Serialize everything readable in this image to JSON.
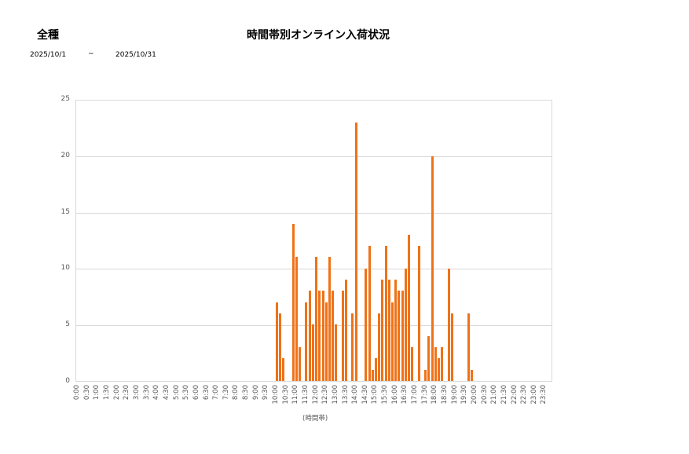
{
  "header": {
    "category": "全種",
    "title": "時間帯別オンライン入荷状況",
    "date_from": "2025/10/1",
    "tilde": "~",
    "date_to": "2025/10/31"
  },
  "colors": {
    "bar": "#f07218",
    "grid": "#d9d9d9",
    "axis_text": "#595959"
  },
  "chart_data": {
    "type": "bar",
    "title": "時間帯別オンライン入荷状況",
    "subtitle": "全種 2025/10/1 ~ 2025/10/31",
    "xlabel": "(時間帯)",
    "ylabel": "",
    "ylim": [
      0,
      25
    ],
    "yticks": [
      0,
      5,
      10,
      15,
      20,
      25
    ],
    "grid": true,
    "legend": "none",
    "interval_minutes": 10,
    "xtick_labels": [
      "0:00",
      "0:30",
      "1:00",
      "1:30",
      "2:00",
      "2:30",
      "3:00",
      "3:30",
      "4:00",
      "4:30",
      "5:00",
      "5:30",
      "6:00",
      "6:30",
      "7:00",
      "7:30",
      "8:00",
      "8:30",
      "9:00",
      "9:30",
      "10:00",
      "10:30",
      "11:00",
      "11:30",
      "12:00",
      "12:30",
      "13:00",
      "13:30",
      "14:00",
      "14:30",
      "15:00",
      "15:30",
      "16:00",
      "16:30",
      "17:00",
      "17:30",
      "18:00",
      "18:30",
      "19:00",
      "19:30",
      "20:00",
      "20:30",
      "21:00",
      "21:30",
      "22:00",
      "22:30",
      "23:00",
      "23:30"
    ],
    "categories": [
      "0:00",
      "0:10",
      "0:20",
      "0:30",
      "0:40",
      "0:50",
      "1:00",
      "1:10",
      "1:20",
      "1:30",
      "1:40",
      "1:50",
      "2:00",
      "2:10",
      "2:20",
      "2:30",
      "2:40",
      "2:50",
      "3:00",
      "3:10",
      "3:20",
      "3:30",
      "3:40",
      "3:50",
      "4:00",
      "4:10",
      "4:20",
      "4:30",
      "4:40",
      "4:50",
      "5:00",
      "5:10",
      "5:20",
      "5:30",
      "5:40",
      "5:50",
      "6:00",
      "6:10",
      "6:20",
      "6:30",
      "6:40",
      "6:50",
      "7:00",
      "7:10",
      "7:20",
      "7:30",
      "7:40",
      "7:50",
      "8:00",
      "8:10",
      "8:20",
      "8:30",
      "8:40",
      "8:50",
      "9:00",
      "9:10",
      "9:20",
      "9:30",
      "9:40",
      "9:50",
      "10:00",
      "10:10",
      "10:20",
      "10:30",
      "10:40",
      "10:50",
      "11:00",
      "11:10",
      "11:20",
      "11:30",
      "11:40",
      "11:50",
      "12:00",
      "12:10",
      "12:20",
      "12:30",
      "12:40",
      "12:50",
      "13:00",
      "13:10",
      "13:20",
      "13:30",
      "13:40",
      "13:50",
      "14:00",
      "14:10",
      "14:20",
      "14:30",
      "14:40",
      "14:50",
      "15:00",
      "15:10",
      "15:20",
      "15:30",
      "15:40",
      "15:50",
      "16:00",
      "16:10",
      "16:20",
      "16:30",
      "16:40",
      "16:50",
      "17:00",
      "17:10",
      "17:20",
      "17:30",
      "17:40",
      "17:50",
      "18:00",
      "18:10",
      "18:20",
      "18:30",
      "18:40",
      "18:50",
      "19:00",
      "19:10",
      "19:20",
      "19:30",
      "19:40",
      "19:50",
      "20:00",
      "20:10",
      "20:20",
      "20:30",
      "20:40",
      "20:50",
      "21:00",
      "21:10",
      "21:20",
      "21:30",
      "21:40",
      "21:50",
      "22:00",
      "22:10",
      "22:20",
      "22:30",
      "22:40",
      "22:50",
      "23:00",
      "23:10",
      "23:20",
      "23:30",
      "23:40",
      "23:50"
    ],
    "values": [
      0,
      0,
      0,
      0,
      0,
      0,
      0,
      0,
      0,
      0,
      0,
      0,
      0,
      0,
      0,
      0,
      0,
      0,
      0,
      0,
      0,
      0,
      0,
      0,
      0,
      0,
      0,
      0,
      0,
      0,
      0,
      0,
      0,
      0,
      0,
      0,
      0,
      0,
      0,
      0,
      0,
      0,
      0,
      0,
      0,
      0,
      0,
      0,
      0,
      0,
      0,
      0,
      0,
      0,
      0,
      0,
      0,
      0,
      0,
      0,
      7,
      6,
      2,
      0,
      0,
      14,
      11,
      3,
      0,
      7,
      8,
      5,
      11,
      8,
      8,
      7,
      11,
      8,
      5,
      0,
      8,
      9,
      0,
      6,
      23,
      0,
      0,
      10,
      12,
      1,
      2,
      6,
      9,
      12,
      9,
      7,
      9,
      8,
      8,
      10,
      13,
      3,
      0,
      12,
      0,
      1,
      4,
      20,
      3,
      2,
      3,
      0,
      10,
      6,
      0,
      0,
      0,
      0,
      6,
      1,
      0,
      0,
      0,
      0,
      0,
      0,
      0,
      0,
      0,
      0,
      0,
      0,
      0,
      0,
      0,
      0,
      0,
      0,
      0,
      0,
      0,
      0,
      0,
      0
    ]
  }
}
